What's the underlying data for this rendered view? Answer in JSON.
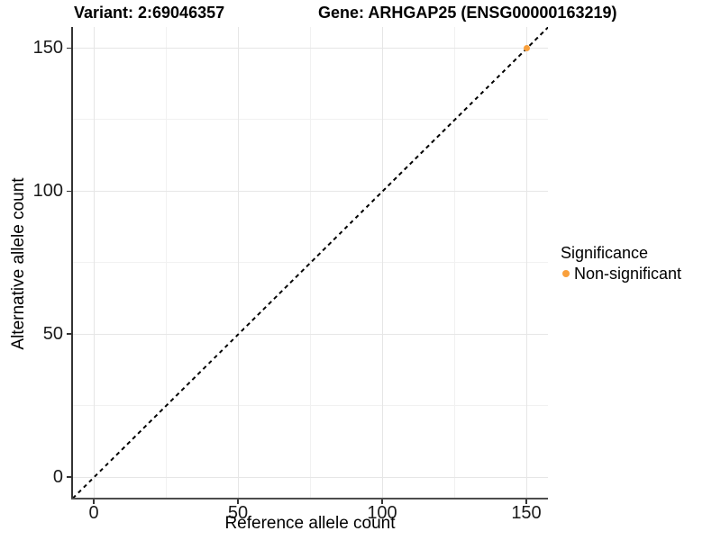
{
  "figure": {
    "title_variant": "Variant: 2:69046357",
    "title_gene": "Gene: ARHGAP25 (ENSG00000163219)"
  },
  "axes": {
    "x": {
      "title": "Reference allele count"
    },
    "y": {
      "title": "Alternative allele count"
    }
  },
  "legend": {
    "title": "Significance",
    "items": [
      {
        "label": "Non-significant",
        "color": "#F9A03C"
      }
    ]
  },
  "colors": {
    "non_significant": "#F9A03C",
    "grid_major": "#e6e6e6",
    "grid_minor": "#f1f1f1",
    "axis_line": "#333333",
    "identity_line": "#000000"
  },
  "chart_data": {
    "type": "scatter",
    "title": "Variant: 2:69046357 | Gene: ARHGAP25 (ENSG00000163219)",
    "xlabel": "Reference allele count",
    "ylabel": "Alternative allele count",
    "xlim": [
      -7.5,
      157.5
    ],
    "ylim": [
      -7.5,
      157.5
    ],
    "x_ticks": [
      0,
      50,
      100,
      150
    ],
    "y_ticks": [
      0,
      50,
      100,
      150
    ],
    "grid": "major at 50-unit intervals, minor at 25-unit midpoints",
    "legend_title": "Significance",
    "legend_position": "right",
    "series": [
      {
        "name": "Non-significant",
        "color": "#F9A03C",
        "marker": "circle",
        "points": [
          {
            "x": 150,
            "y": 150
          }
        ]
      }
    ],
    "reference_line": {
      "type": "identity y=x",
      "style": "dashed",
      "color": "#000000",
      "from": [
        -7.5,
        -7.5
      ],
      "to": [
        157.5,
        157.5
      ]
    }
  }
}
